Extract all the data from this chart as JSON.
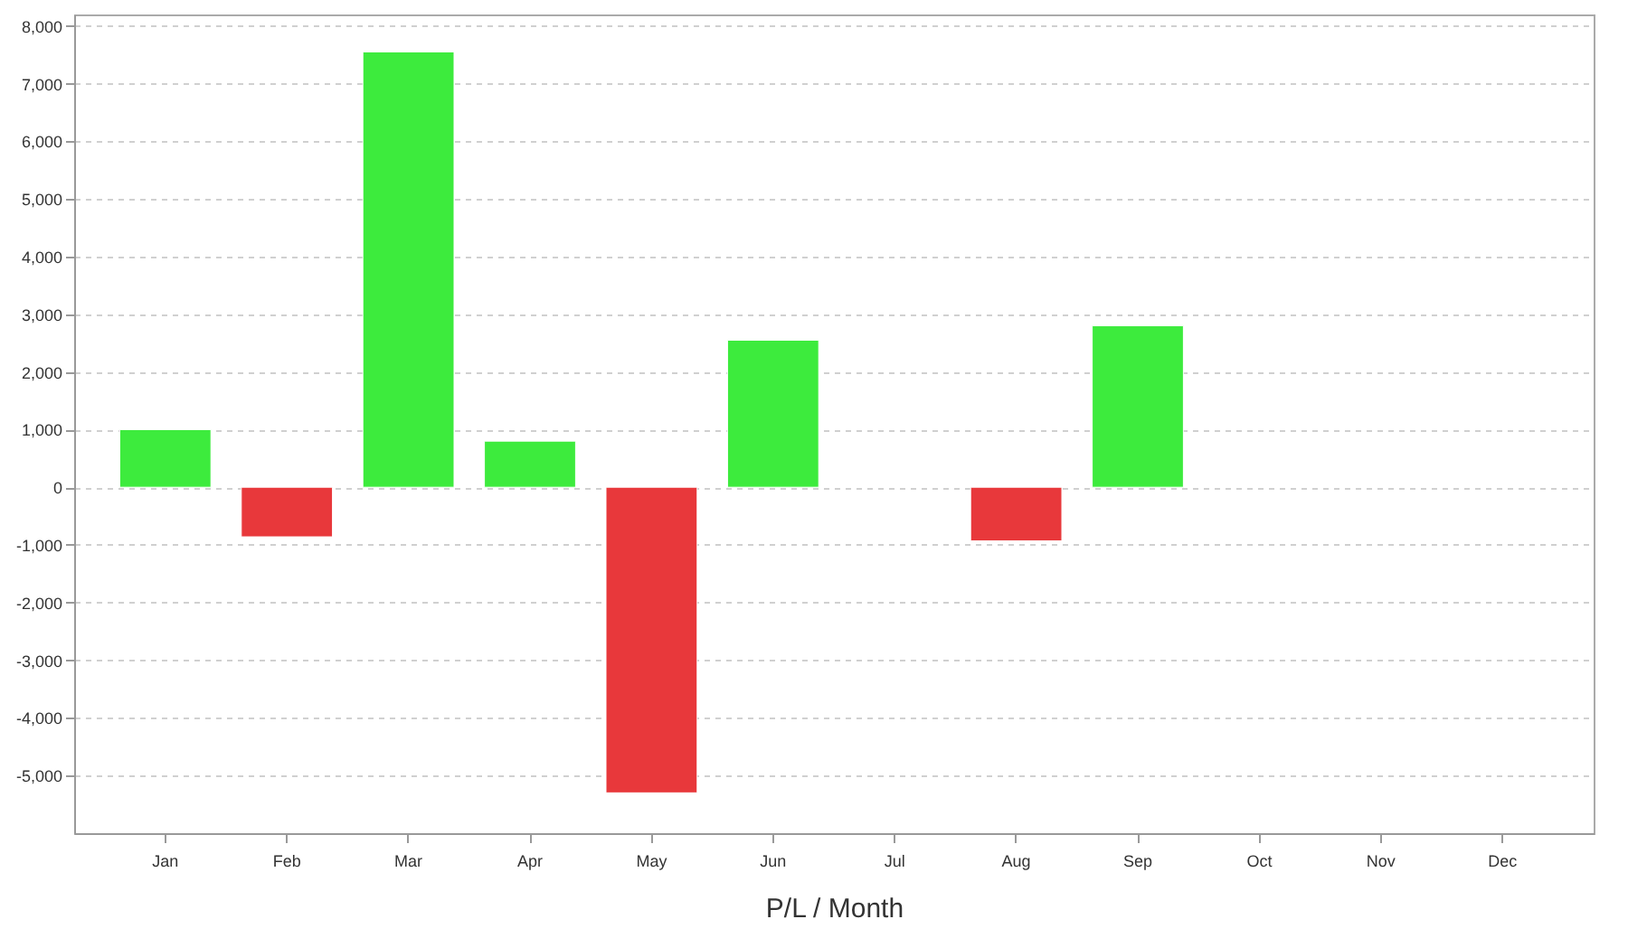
{
  "chart_data": {
    "type": "bar",
    "xlabel": "P/L / Month",
    "categories": [
      "Jan",
      "Feb",
      "Mar",
      "Apr",
      "May",
      "Jun",
      "Jul",
      "Aug",
      "Sep",
      "Oct",
      "Nov",
      "Dec"
    ],
    "values": [
      1000,
      -860,
      7550,
      800,
      -5300,
      2550,
      null,
      -930,
      2800,
      null,
      null,
      null
    ],
    "colors": [
      "#3deb3d",
      "#e8383b",
      "#3deb3d",
      "#3deb3d",
      "#e8383b",
      "#3deb3d",
      "#3deb3d",
      "#e8383b",
      "#3deb3d",
      "#3deb3d",
      "#3deb3d",
      "#3deb3d"
    ],
    "ylim": [
      -6000,
      8200
    ],
    "yticks": [
      {
        "value": -5000,
        "label": "-5,000"
      },
      {
        "value": -4000,
        "label": "-4,000"
      },
      {
        "value": -3000,
        "label": "-3,000"
      },
      {
        "value": -2000,
        "label": "-2,000"
      },
      {
        "value": -1000,
        "label": "-1,000"
      },
      0,
      {
        "value": 1000,
        "label": "1,000"
      },
      {
        "value": 2000,
        "label": "2,000"
      },
      {
        "value": 3000,
        "label": "3,000"
      },
      {
        "value": 4000,
        "label": "4,000"
      },
      {
        "value": 5000,
        "label": "5,000"
      },
      {
        "value": 6000,
        "label": "6,000"
      },
      {
        "value": 7000,
        "label": "7,000"
      },
      {
        "value": 8000,
        "label": "8,000"
      }
    ],
    "grid": "y"
  }
}
